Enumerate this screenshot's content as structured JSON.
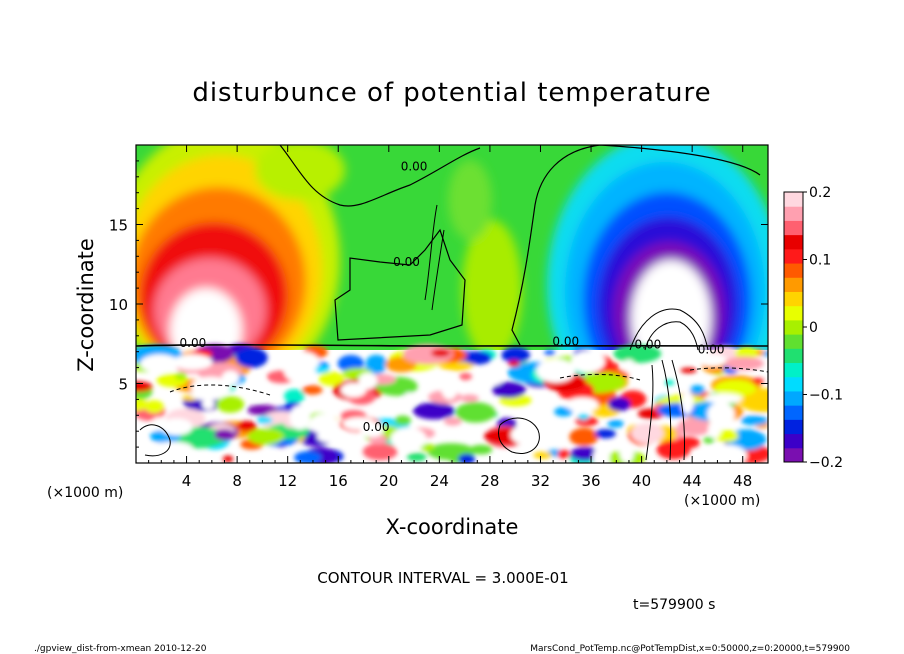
{
  "chart_data": {
    "type": "heatmap",
    "title": "disturbunce of potential temperature",
    "xlabel": "X-coordinate",
    "ylabel": "Z-coordinate",
    "x_unit": "(×1000 m)",
    "y_unit": "(×1000 m)",
    "xlim": [
      0,
      50
    ],
    "ylim": [
      0,
      20
    ],
    "x_ticks": [
      4,
      8,
      12,
      16,
      20,
      24,
      28,
      32,
      36,
      40,
      44,
      48
    ],
    "y_ticks": [
      5,
      10,
      15
    ],
    "colorbar": {
      "range": [
        -0.2,
        0.2
      ],
      "ticks": [
        {
          "value": 0.2,
          "label": "0.2"
        },
        {
          "value": 0.1,
          "label": "0.1"
        },
        {
          "value": 0,
          "label": "0"
        },
        {
          "value": -0.1,
          "label": "−0.1"
        },
        {
          "value": -0.2,
          "label": "−0.2"
        }
      ],
      "colors": [
        "#7a0fb0",
        "#3c00c8",
        "#0022e0",
        "#0066ff",
        "#00a8ff",
        "#00dcff",
        "#00f0c8",
        "#20e070",
        "#60e030",
        "#a8f000",
        "#e8ff00",
        "#ffd400",
        "#ff9a00",
        "#ff5a00",
        "#ff1a1a",
        "#e80000",
        "#ff6070",
        "#ffa0b0",
        "#ffd8e0"
      ]
    },
    "contour_labels": [
      {
        "text": "0.00",
        "x": 22.0,
        "z": 18.4
      },
      {
        "text": "0.00",
        "x": 21.4,
        "z": 12.4
      },
      {
        "text": "0.00",
        "x": 4.5,
        "z": 7.3
      },
      {
        "text": "0.00",
        "x": 34.0,
        "z": 7.4
      },
      {
        "text": "0.00",
        "x": 40.5,
        "z": 7.2
      },
      {
        "text": "0.00",
        "x": 45.5,
        "z": 6.9
      },
      {
        "text": "0.00",
        "x": 19.0,
        "z": 2.0
      }
    ],
    "contour_interval": "CONTOUR INTERVAL = 3.000E-01",
    "time": "t=579900  s",
    "footer_left": "./gpview_dist-from-xmean  2010-12-20",
    "footer_right": "MarsCond_PotTemp.nc@PotTempDist,x=0:50000,z=0:20000,t=579900"
  }
}
